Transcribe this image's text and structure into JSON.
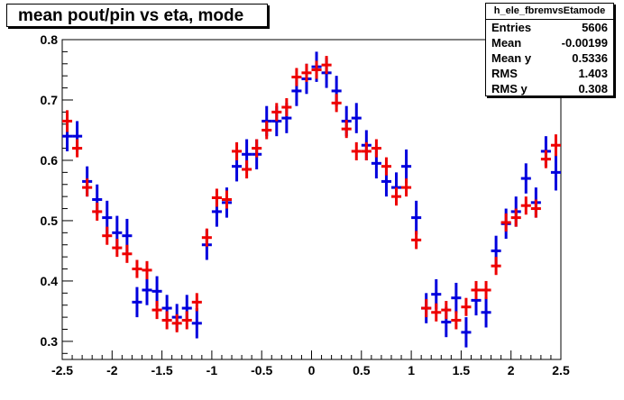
{
  "title": "mean pout/pin vs eta, mode",
  "stats": {
    "name": "h_ele_fbremvsEtamode",
    "rows": [
      {
        "label": "Entries",
        "value": "5606"
      },
      {
        "label": "Mean",
        "value": "-0.00199"
      },
      {
        "label": "Mean y",
        "value": "0.5336"
      },
      {
        "label": "RMS",
        "value": "1.403"
      },
      {
        "label": "RMS y",
        "value": "0.308"
      }
    ]
  },
  "chart_data": {
    "type": "scatter",
    "title": "mean pout/pin vs eta, mode",
    "xlim": [
      -2.5,
      2.5
    ],
    "ylim": [
      0.27,
      0.8
    ],
    "x_ticks": [
      "-2.5",
      "-2",
      "-1.5",
      "-1",
      "-0.5",
      "0",
      "0.5",
      "1",
      "1.5",
      "2",
      "2.5"
    ],
    "y_ticks": [
      "0.3",
      "0.4",
      "0.5",
      "0.6",
      "0.7",
      "0.8"
    ],
    "x_tick_values": [
      -2.5,
      -2,
      -1.5,
      -1,
      -0.5,
      0,
      0.5,
      1,
      1.5,
      2,
      2.5
    ],
    "y_tick_values": [
      0.3,
      0.4,
      0.5,
      0.6,
      0.7,
      0.8
    ],
    "bin_half_width": 0.05,
    "grid": false,
    "colors": {
      "blue": "#0000dd",
      "red": "#ee0000"
    },
    "series": [
      {
        "color": "blue",
        "points": [
          {
            "x": -2.45,
            "y": 0.64,
            "e": 0.025
          },
          {
            "x": -2.35,
            "y": 0.64,
            "e": 0.025
          },
          {
            "x": -2.25,
            "y": 0.565,
            "e": 0.025
          },
          {
            "x": -2.15,
            "y": 0.535,
            "e": 0.025
          },
          {
            "x": -2.05,
            "y": 0.505,
            "e": 0.028
          },
          {
            "x": -1.95,
            "y": 0.48,
            "e": 0.028
          },
          {
            "x": -1.85,
            "y": 0.475,
            "e": 0.028
          },
          {
            "x": -1.75,
            "y": 0.365,
            "e": 0.025
          },
          {
            "x": -1.65,
            "y": 0.385,
            "e": 0.025
          },
          {
            "x": -1.55,
            "y": 0.383,
            "e": 0.025
          },
          {
            "x": -1.45,
            "y": 0.355,
            "e": 0.022
          },
          {
            "x": -1.35,
            "y": 0.34,
            "e": 0.022
          },
          {
            "x": -1.25,
            "y": 0.355,
            "e": 0.022
          },
          {
            "x": -1.15,
            "y": 0.33,
            "e": 0.025
          },
          {
            "x": -1.05,
            "y": 0.46,
            "e": 0.025
          },
          {
            "x": -0.95,
            "y": 0.515,
            "e": 0.025
          },
          {
            "x": -0.85,
            "y": 0.53,
            "e": 0.025
          },
          {
            "x": -0.75,
            "y": 0.59,
            "e": 0.025
          },
          {
            "x": -0.65,
            "y": 0.61,
            "e": 0.025
          },
          {
            "x": -0.55,
            "y": 0.61,
            "e": 0.025
          },
          {
            "x": -0.45,
            "y": 0.665,
            "e": 0.025
          },
          {
            "x": -0.35,
            "y": 0.665,
            "e": 0.025
          },
          {
            "x": -0.25,
            "y": 0.67,
            "e": 0.025
          },
          {
            "x": -0.15,
            "y": 0.715,
            "e": 0.025
          },
          {
            "x": -0.05,
            "y": 0.735,
            "e": 0.025
          },
          {
            "x": 0.05,
            "y": 0.755,
            "e": 0.025
          },
          {
            "x": 0.15,
            "y": 0.745,
            "e": 0.025
          },
          {
            "x": 0.25,
            "y": 0.715,
            "e": 0.025
          },
          {
            "x": 0.35,
            "y": 0.665,
            "e": 0.025
          },
          {
            "x": 0.45,
            "y": 0.67,
            "e": 0.025
          },
          {
            "x": 0.55,
            "y": 0.625,
            "e": 0.025
          },
          {
            "x": 0.65,
            "y": 0.595,
            "e": 0.025
          },
          {
            "x": 0.75,
            "y": 0.565,
            "e": 0.025
          },
          {
            "x": 0.85,
            "y": 0.555,
            "e": 0.025
          },
          {
            "x": 0.95,
            "y": 0.59,
            "e": 0.028
          },
          {
            "x": 1.05,
            "y": 0.505,
            "e": 0.028
          },
          {
            "x": 1.15,
            "y": 0.355,
            "e": 0.025
          },
          {
            "x": 1.25,
            "y": 0.378,
            "e": 0.025
          },
          {
            "x": 1.35,
            "y": 0.332,
            "e": 0.025
          },
          {
            "x": 1.45,
            "y": 0.372,
            "e": 0.025
          },
          {
            "x": 1.55,
            "y": 0.315,
            "e": 0.025
          },
          {
            "x": 1.65,
            "y": 0.368,
            "e": 0.025
          },
          {
            "x": 1.75,
            "y": 0.348,
            "e": 0.025
          },
          {
            "x": 1.85,
            "y": 0.45,
            "e": 0.025
          },
          {
            "x": 1.95,
            "y": 0.495,
            "e": 0.025
          },
          {
            "x": 2.05,
            "y": 0.515,
            "e": 0.025
          },
          {
            "x": 2.15,
            "y": 0.57,
            "e": 0.025
          },
          {
            "x": 2.25,
            "y": 0.53,
            "e": 0.025
          },
          {
            "x": 2.35,
            "y": 0.615,
            "e": 0.025
          },
          {
            "x": 2.45,
            "y": 0.58,
            "e": 0.03
          }
        ]
      },
      {
        "color": "red",
        "points": [
          {
            "x": -2.45,
            "y": 0.665,
            "e": 0.018
          },
          {
            "x": -2.35,
            "y": 0.62,
            "e": 0.015
          },
          {
            "x": -2.25,
            "y": 0.555,
            "e": 0.015
          },
          {
            "x": -2.15,
            "y": 0.515,
            "e": 0.015
          },
          {
            "x": -2.05,
            "y": 0.475,
            "e": 0.015
          },
          {
            "x": -1.95,
            "y": 0.455,
            "e": 0.015
          },
          {
            "x": -1.85,
            "y": 0.445,
            "e": 0.015
          },
          {
            "x": -1.75,
            "y": 0.42,
            "e": 0.015
          },
          {
            "x": -1.65,
            "y": 0.418,
            "e": 0.015
          },
          {
            "x": -1.55,
            "y": 0.352,
            "e": 0.015
          },
          {
            "x": -1.45,
            "y": 0.335,
            "e": 0.015
          },
          {
            "x": -1.35,
            "y": 0.33,
            "e": 0.015
          },
          {
            "x": -1.25,
            "y": 0.335,
            "e": 0.015
          },
          {
            "x": -1.15,
            "y": 0.365,
            "e": 0.015
          },
          {
            "x": -1.05,
            "y": 0.472,
            "e": 0.015
          },
          {
            "x": -0.95,
            "y": 0.538,
            "e": 0.015
          },
          {
            "x": -0.85,
            "y": 0.535,
            "e": 0.015
          },
          {
            "x": -0.75,
            "y": 0.615,
            "e": 0.015
          },
          {
            "x": -0.65,
            "y": 0.585,
            "e": 0.015
          },
          {
            "x": -0.55,
            "y": 0.62,
            "e": 0.015
          },
          {
            "x": -0.45,
            "y": 0.65,
            "e": 0.015
          },
          {
            "x": -0.35,
            "y": 0.68,
            "e": 0.015
          },
          {
            "x": -0.25,
            "y": 0.688,
            "e": 0.015
          },
          {
            "x": -0.15,
            "y": 0.738,
            "e": 0.015
          },
          {
            "x": -0.05,
            "y": 0.745,
            "e": 0.015
          },
          {
            "x": 0.05,
            "y": 0.75,
            "e": 0.015
          },
          {
            "x": 0.15,
            "y": 0.758,
            "e": 0.015
          },
          {
            "x": 0.25,
            "y": 0.695,
            "e": 0.015
          },
          {
            "x": 0.35,
            "y": 0.652,
            "e": 0.015
          },
          {
            "x": 0.45,
            "y": 0.615,
            "e": 0.015
          },
          {
            "x": 0.55,
            "y": 0.615,
            "e": 0.015
          },
          {
            "x": 0.65,
            "y": 0.62,
            "e": 0.015
          },
          {
            "x": 0.75,
            "y": 0.59,
            "e": 0.015
          },
          {
            "x": 0.85,
            "y": 0.54,
            "e": 0.015
          },
          {
            "x": 0.95,
            "y": 0.555,
            "e": 0.015
          },
          {
            "x": 1.05,
            "y": 0.468,
            "e": 0.015
          },
          {
            "x": 1.15,
            "y": 0.355,
            "e": 0.015
          },
          {
            "x": 1.25,
            "y": 0.348,
            "e": 0.015
          },
          {
            "x": 1.35,
            "y": 0.352,
            "e": 0.015
          },
          {
            "x": 1.45,
            "y": 0.335,
            "e": 0.015
          },
          {
            "x": 1.55,
            "y": 0.357,
            "e": 0.015
          },
          {
            "x": 1.65,
            "y": 0.385,
            "e": 0.015
          },
          {
            "x": 1.75,
            "y": 0.385,
            "e": 0.015
          },
          {
            "x": 1.85,
            "y": 0.425,
            "e": 0.015
          },
          {
            "x": 1.95,
            "y": 0.497,
            "e": 0.015
          },
          {
            "x": 2.05,
            "y": 0.505,
            "e": 0.015
          },
          {
            "x": 2.15,
            "y": 0.525,
            "e": 0.015
          },
          {
            "x": 2.25,
            "y": 0.52,
            "e": 0.015
          },
          {
            "x": 2.35,
            "y": 0.602,
            "e": 0.015
          },
          {
            "x": 2.45,
            "y": 0.625,
            "e": 0.018
          }
        ]
      }
    ]
  }
}
